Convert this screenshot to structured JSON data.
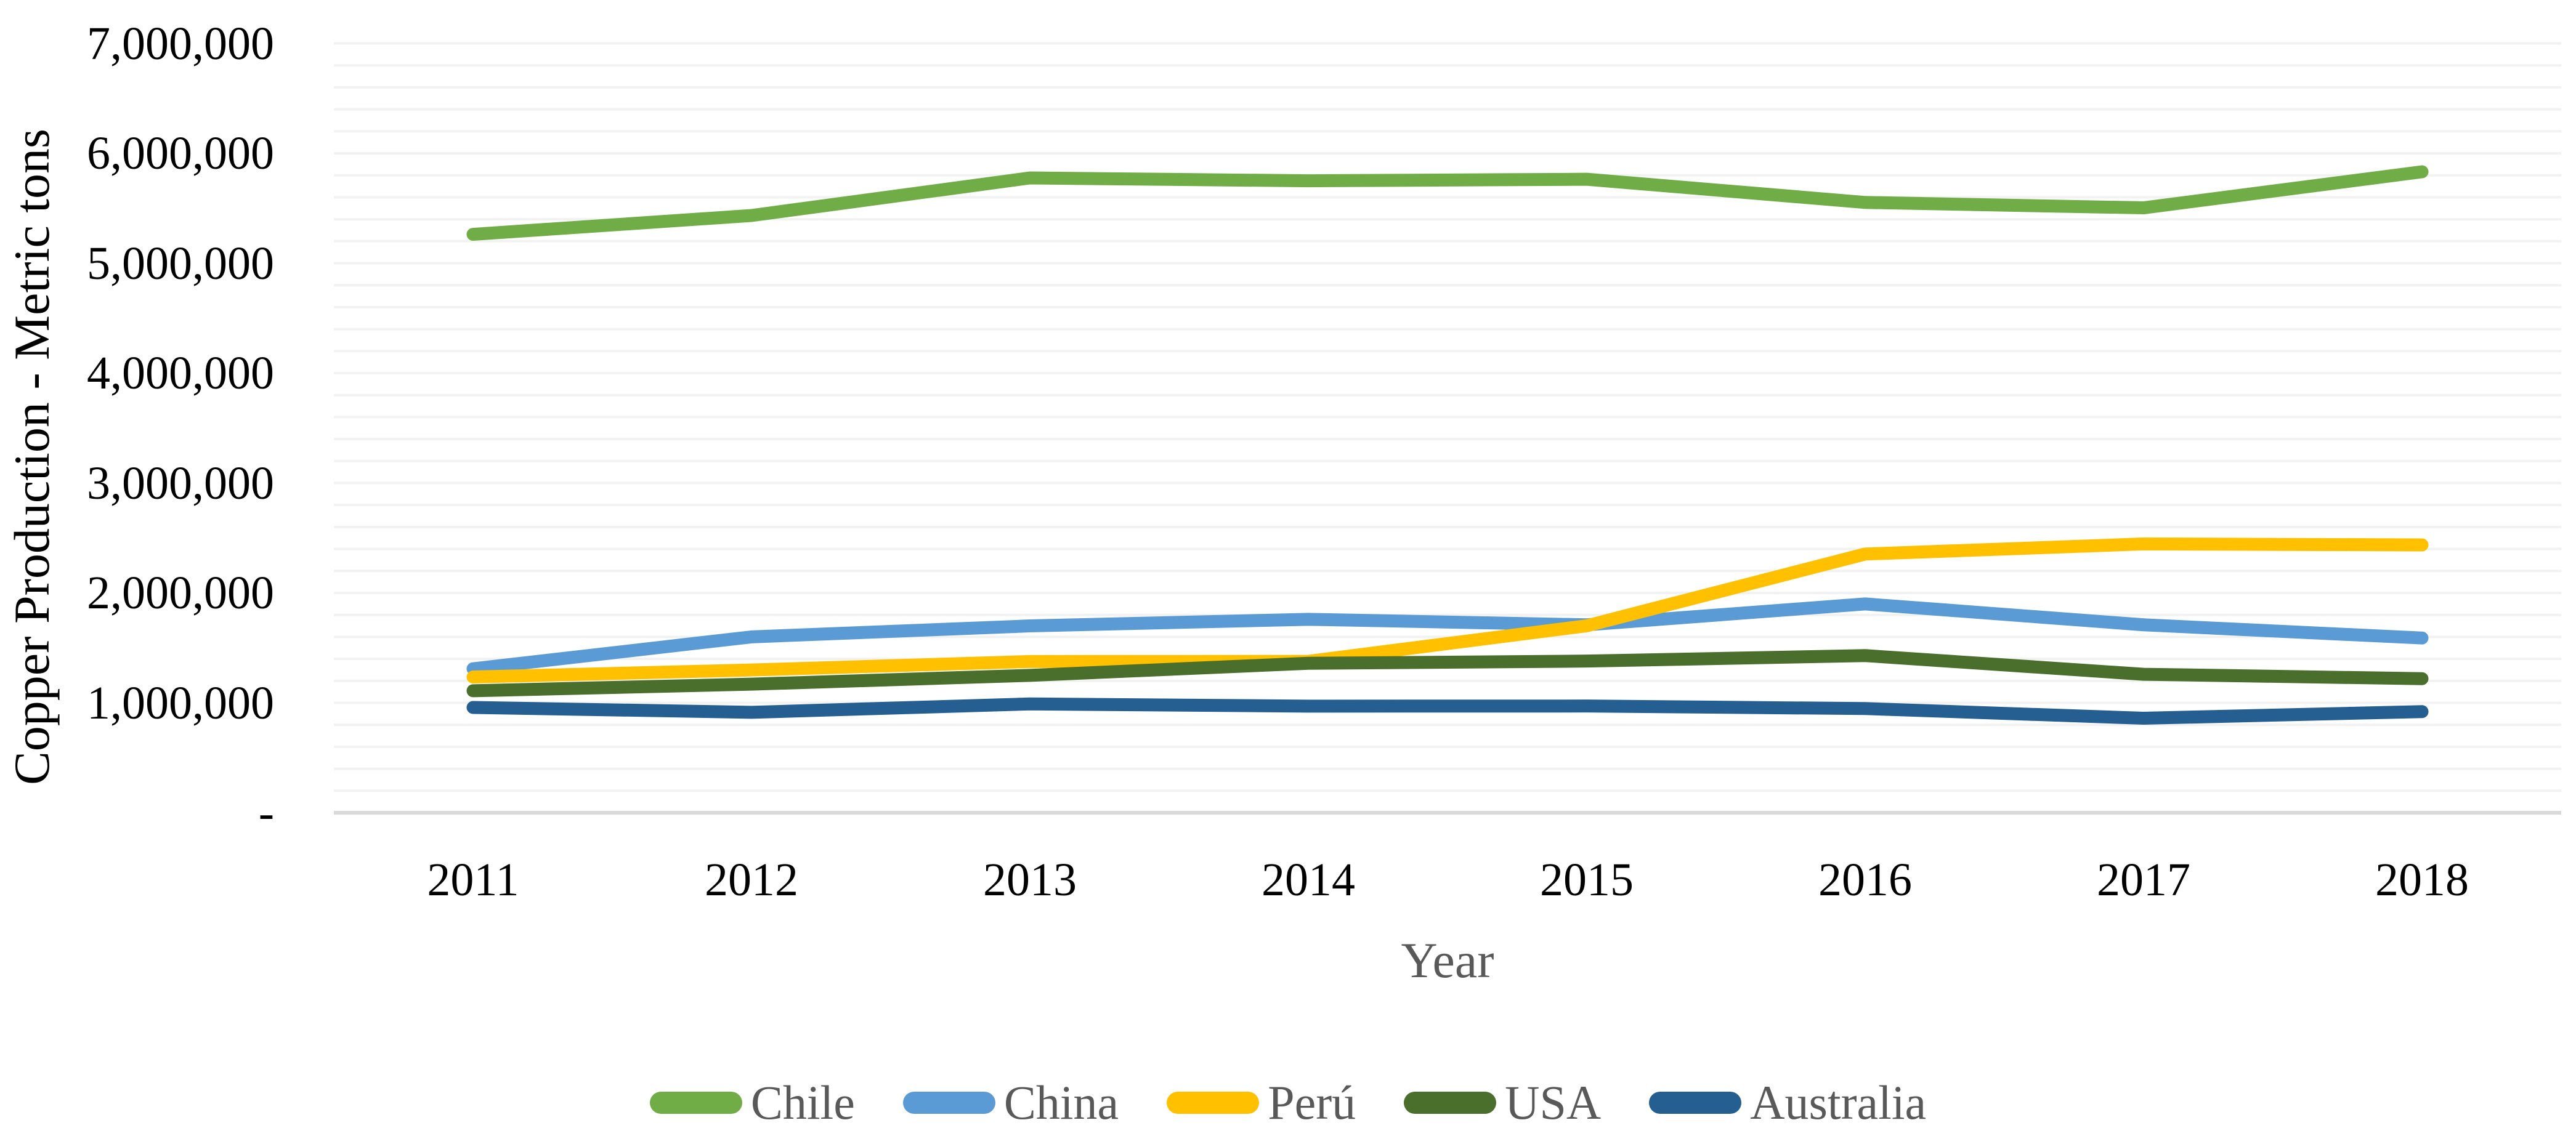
{
  "chart_data": {
    "type": "line",
    "title": "",
    "xlabel": "Year",
    "ylabel": "Copper Production - Metric tons",
    "categories": [
      "2011",
      "2012",
      "2013",
      "2014",
      "2015",
      "2016",
      "2017",
      "2018"
    ],
    "series": [
      {
        "name": "Chile",
        "color": "#70AD47",
        "values": [
          5263000,
          5434000,
          5776000,
          5750000,
          5764000,
          5553000,
          5504000,
          5832000
        ]
      },
      {
        "name": "China",
        "color": "#5B9BD5",
        "values": [
          1310000,
          1600000,
          1700000,
          1760000,
          1710000,
          1900000,
          1710000,
          1590000
        ]
      },
      {
        "name": "Perú",
        "color": "#FFC000",
        "values": [
          1235000,
          1299000,
          1376000,
          1378000,
          1701000,
          2354000,
          2446000,
          2437000
        ]
      },
      {
        "name": "USA",
        "color": "#4A6E2B",
        "values": [
          1110000,
          1170000,
          1250000,
          1360000,
          1380000,
          1430000,
          1260000,
          1220000
        ]
      },
      {
        "name": "Australia",
        "color": "#255E91",
        "values": [
          958000,
          914000,
          990000,
          970000,
          971000,
          948000,
          860000,
          920000
        ]
      }
    ],
    "ylim": [
      0,
      7000000
    ],
    "y_ticks": [
      {
        "label": "7,000,000",
        "value": 7000000
      },
      {
        "label": "6,000,000",
        "value": 6000000
      },
      {
        "label": "5,000,000",
        "value": 5000000
      },
      {
        "label": "4,000,000",
        "value": 4000000
      },
      {
        "label": "3,000,000",
        "value": 3000000
      },
      {
        "label": "2,000,000",
        "value": 2000000
      },
      {
        "label": "1,000,000",
        "value": 1000000
      },
      {
        "label": "-",
        "value": 0
      }
    ],
    "gridline_step": 200000,
    "grid_on": true,
    "grid_color": "#F2F2F2",
    "axis_line_color": "#D9D9D9",
    "tick_text_color": "#000000",
    "muted_text_color": "#595959",
    "legend_position": "bottom"
  }
}
